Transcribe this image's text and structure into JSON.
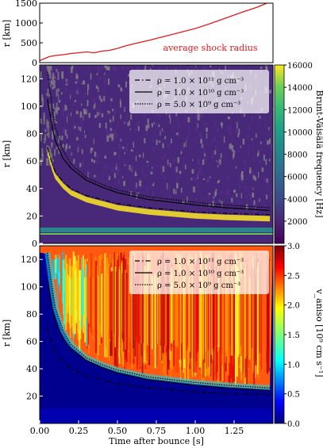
{
  "chart_data": [
    {
      "type": "line",
      "ylabel": "r [km]",
      "xlim": [
        0,
        1.5
      ],
      "ylim": [
        0,
        1500
      ],
      "yticks": [
        0,
        500,
        1000,
        1500
      ],
      "annotation": "average shock radius",
      "line_color": "#e41a1c",
      "x": [
        0.0,
        0.03,
        0.06,
        0.1,
        0.15,
        0.2,
        0.25,
        0.3,
        0.35,
        0.4,
        0.45,
        0.5,
        0.55,
        0.6,
        0.7,
        0.8,
        0.9,
        1.0,
        1.1,
        1.2,
        1.3,
        1.4,
        1.46
      ],
      "y": [
        50,
        100,
        150,
        180,
        200,
        230,
        250,
        270,
        250,
        290,
        310,
        360,
        420,
        470,
        560,
        660,
        760,
        860,
        990,
        1130,
        1270,
        1400,
        1500
      ]
    },
    {
      "type": "heatmap",
      "ylabel": "r [km]",
      "colorbar_label": "Brunt-Väisälä frequency [Hz]",
      "colorbar_ticks": [
        "16000",
        "14000",
        "12000",
        "10000",
        "8000",
        "6000",
        "4000",
        "2000"
      ],
      "colorbar_range": [
        0,
        16000
      ],
      "colormap": "viridis",
      "xlim": [
        0,
        1.5
      ],
      "ylim": [
        0,
        130
      ],
      "yticks": [
        0,
        20,
        40,
        60,
        80,
        100,
        120
      ],
      "legend_position": "top-right",
      "legend": [
        {
          "style": "dashdot",
          "label": "ρ = 1.0 × 10¹¹ g cm⁻³"
        },
        {
          "style": "solid",
          "label": "ρ = 1.0 × 10¹⁰ g cm⁻³"
        },
        {
          "style": "dotted",
          "label": "ρ = 5.0 × 10⁹ g cm⁻³"
        }
      ],
      "contours": {
        "x": [
          0.05,
          0.08,
          0.1,
          0.15,
          0.2,
          0.3,
          0.4,
          0.5,
          0.7,
          1.0,
          1.2,
          1.48
        ],
        "rho_1e11": [
          70,
          58,
          52,
          45,
          40,
          35,
          32,
          29,
          26,
          23,
          22,
          21
        ],
        "rho_1e10": [
          105,
          85,
          75,
          62,
          55,
          46,
          41,
          37,
          32,
          28,
          26,
          24
        ],
        "rho_5e9": [
          125,
          100,
          85,
          68,
          58,
          48,
          43,
          39,
          34,
          30,
          28,
          26
        ]
      }
    },
    {
      "type": "heatmap",
      "xlabel": "Time after bounce [s]",
      "ylabel": "r [km]",
      "colorbar_label": "v_aniso [10⁹ cm s⁻¹]",
      "colorbar_ticks": [
        "3.0",
        "2.5",
        "2.0",
        "1.5",
        "1.0",
        "0.5",
        "0.0"
      ],
      "colorbar_range": [
        0,
        3
      ],
      "colormap": "jet",
      "xlim": [
        0,
        1.5
      ],
      "ylim": [
        0,
        130
      ],
      "xticks": [
        "0.00",
        "0.25",
        "0.50",
        "0.75",
        "1.00",
        "1.25"
      ],
      "xtick_values": [
        0,
        0.25,
        0.5,
        0.75,
        1.0,
        1.25
      ],
      "yticks": [
        20,
        40,
        60,
        80,
        100,
        120
      ],
      "legend_position": "top-right",
      "legend": [
        {
          "style": "dashdot",
          "label": "ρ = 1.0 × 10¹¹ g cm⁻³"
        },
        {
          "style": "solid",
          "label": "ρ = 1.0 × 10¹⁰ g cm⁻³"
        },
        {
          "style": "dotted",
          "label": "ρ = 5.0 × 10⁹ g cm⁻³"
        }
      ]
    }
  ]
}
